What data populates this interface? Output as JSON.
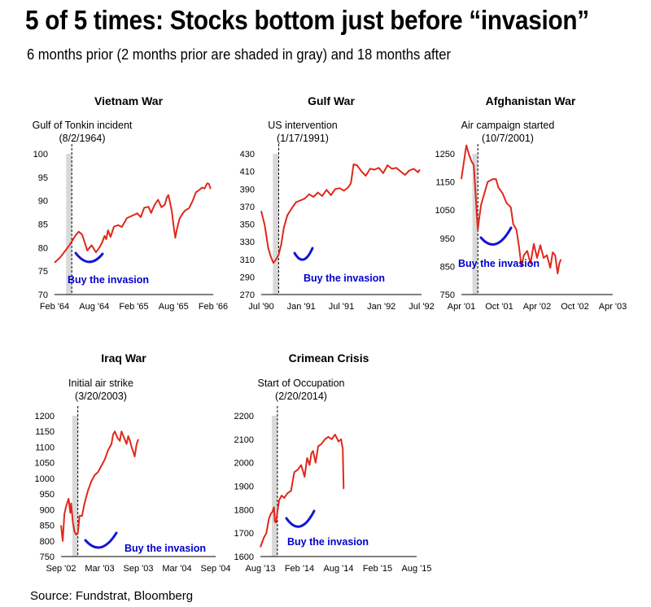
{
  "title": "5 of 5 times: Stocks bottom just before “invasion”",
  "subtitle": "6 months prior (2 months prior are shaded in gray) and 18 months after",
  "source": "Source: Fundstrat, Bloomberg",
  "colors": {
    "line": "#e0281c",
    "shade": "#d9d9d9",
    "arc": "#1414d2",
    "buy_text": "#0000cc"
  },
  "chart_data": [
    {
      "type": "line",
      "title": "Vietnam War",
      "event_label": "Gulf of Tonkin incident",
      "event_date": "(8/2/1964)",
      "annotation": "Buy the invasion",
      "xticks": [
        "Feb '64",
        "Aug '64",
        "Feb '65",
        "Aug '65",
        "Feb '66"
      ],
      "yticks": [
        "100",
        "95",
        "90",
        "85",
        "80",
        "75",
        "70"
      ],
      "ylim": [
        70,
        100
      ],
      "event_x": 1.0,
      "shade": [
        0.67,
        1.0
      ],
      "series": [
        {
          "values": [
            [
              0,
              76.8
            ],
            [
              0.3,
              77.8
            ],
            [
              0.6,
              79.2
            ],
            [
              0.9,
              80.7
            ],
            [
              1.2,
              82.5
            ],
            [
              1.4,
              83.4
            ],
            [
              1.6,
              82.8
            ],
            [
              1.9,
              79.4
            ],
            [
              2.15,
              80.5
            ],
            [
              2.4,
              79.0
            ],
            [
              2.6,
              80.0
            ],
            [
              2.75,
              81.0
            ],
            [
              2.9,
              82.5
            ],
            [
              3.0,
              81.8
            ],
            [
              3.1,
              83.7
            ],
            [
              3.25,
              82.3
            ],
            [
              3.45,
              84.5
            ],
            [
              3.7,
              84.8
            ],
            [
              3.9,
              84.4
            ],
            [
              4.2,
              86.3
            ],
            [
              4.5,
              86.8
            ],
            [
              4.8,
              87.3
            ],
            [
              5.0,
              86.5
            ],
            [
              5.2,
              88.5
            ],
            [
              5.45,
              88.7
            ],
            [
              5.6,
              87.4
            ],
            [
              5.8,
              89.1
            ],
            [
              6.0,
              90.2
            ],
            [
              6.2,
              88.6
            ],
            [
              6.4,
              89.2
            ],
            [
              6.5,
              90.6
            ],
            [
              6.6,
              91.2
            ],
            [
              6.7,
              89.6
            ],
            [
              6.8,
              87.8
            ],
            [
              6.9,
              84.7
            ],
            [
              7.0,
              82.1
            ],
            [
              7.1,
              84.0
            ],
            [
              7.25,
              86.2
            ],
            [
              7.45,
              87.4
            ],
            [
              7.6,
              88.0
            ],
            [
              7.8,
              88.4
            ],
            [
              8.0,
              89.9
            ],
            [
              8.2,
              91.8
            ],
            [
              8.4,
              92.3
            ],
            [
              8.55,
              92.8
            ],
            [
              8.7,
              92.6
            ],
            [
              8.85,
              93.7
            ],
            [
              8.95,
              93.6
            ],
            [
              9.05,
              92.5
            ]
          ]
        }
      ]
    },
    {
      "type": "line",
      "title": "Gulf War",
      "event_label": "US intervention",
      "event_date": "(1/17/1991)",
      "annotation": "Buy the invasion",
      "xticks": [
        "Jul '90",
        "Jan '91",
        "Jul '91",
        "Jan '92",
        "Jul '92"
      ],
      "yticks": [
        "430",
        "410",
        "390",
        "370",
        "350",
        "330",
        "310",
        "290",
        "270"
      ],
      "ylim": [
        270,
        430
      ],
      "event_x": 1.0,
      "shade": [
        0.67,
        1.0
      ],
      "series": [
        {
          "values": [
            [
              0,
              365
            ],
            [
              0.2,
              349
            ],
            [
              0.4,
              323
            ],
            [
              0.55,
              313
            ],
            [
              0.7,
              306
            ],
            [
              0.85,
              310
            ],
            [
              1.0,
              315
            ],
            [
              1.15,
              327
            ],
            [
              1.3,
              346
            ],
            [
              1.5,
              360
            ],
            [
              1.75,
              368
            ],
            [
              2.0,
              375
            ],
            [
              2.25,
              377
            ],
            [
              2.5,
              379
            ],
            [
              2.75,
              384
            ],
            [
              3.0,
              381
            ],
            [
              3.25,
              386
            ],
            [
              3.5,
              382
            ],
            [
              3.75,
              389
            ],
            [
              4.0,
              383
            ],
            [
              4.25,
              390
            ],
            [
              4.5,
              391
            ],
            [
              4.75,
              388
            ],
            [
              5.0,
              392
            ],
            [
              5.15,
              397
            ],
            [
              5.3,
              418
            ],
            [
              5.5,
              417
            ],
            [
              5.75,
              410
            ],
            [
              6.0,
              405
            ],
            [
              6.25,
              413
            ],
            [
              6.5,
              412
            ],
            [
              6.75,
              414
            ],
            [
              7.0,
              408
            ],
            [
              7.25,
              417
            ],
            [
              7.5,
              413
            ],
            [
              7.75,
              414
            ],
            [
              8.0,
              410
            ],
            [
              8.25,
              406
            ],
            [
              8.5,
              411
            ],
            [
              8.75,
              413
            ],
            [
              9.0,
              409
            ],
            [
              9.1,
              412
            ]
          ]
        }
      ]
    },
    {
      "type": "line",
      "title": "Afghanistan War",
      "event_label": "Air campaign started",
      "event_date": "(10/7/2001)",
      "annotation": "Buy the invasion",
      "xticks": [
        "Apr '01",
        "Oct '01",
        "Apr '02",
        "Oct '02",
        "Apr '03"
      ],
      "yticks": [
        "1250",
        "1150",
        "1050",
        "950",
        "850",
        "750"
      ],
      "ylim": [
        750,
        1250
      ],
      "event_x": 1.0,
      "shade": [
        0.67,
        1.0
      ],
      "series": [
        {
          "values": [
            [
              0,
              1160
            ],
            [
              0.15,
              1220
            ],
            [
              0.3,
              1280
            ],
            [
              0.45,
              1250
            ],
            [
              0.6,
              1225
            ],
            [
              0.75,
              1210
            ],
            [
              0.85,
              1120
            ],
            [
              0.93,
              1040
            ],
            [
              1.0,
              980
            ],
            [
              1.08,
              1020
            ],
            [
              1.2,
              1070
            ],
            [
              1.35,
              1100
            ],
            [
              1.6,
              1150
            ],
            [
              1.9,
              1160
            ],
            [
              2.1,
              1160
            ],
            [
              2.25,
              1130
            ],
            [
              2.5,
              1110
            ],
            [
              2.75,
              1075
            ],
            [
              3.0,
              1060
            ],
            [
              3.15,
              1000
            ],
            [
              3.35,
              980
            ],
            [
              3.5,
              920
            ],
            [
              3.65,
              850
            ],
            [
              3.8,
              890
            ],
            [
              4.0,
              905
            ],
            [
              4.2,
              860
            ],
            [
              4.4,
              930
            ],
            [
              4.6,
              880
            ],
            [
              4.8,
              925
            ],
            [
              5.0,
              880
            ],
            [
              5.2,
              890
            ],
            [
              5.4,
              845
            ],
            [
              5.55,
              900
            ],
            [
              5.7,
              890
            ],
            [
              5.85,
              825
            ],
            [
              5.95,
              860
            ],
            [
              6.05,
              875
            ]
          ]
        }
      ]
    },
    {
      "type": "line",
      "title": "Iraq War",
      "event_label": "Initial air strike",
      "event_date": "(3/20/2003)",
      "annotation": "Buy the invasion",
      "xticks": [
        "Sep '02",
        "Mar '03",
        "Sep '03",
        "Mar '04",
        "Sep '04"
      ],
      "yticks": [
        "1200",
        "1150",
        "1100",
        "1050",
        "1000",
        "950",
        "900",
        "850",
        "800",
        "750"
      ],
      "ylim": [
        750,
        1200
      ],
      "event_x": 1.0,
      "shade": [
        0.67,
        1.0
      ],
      "series": [
        {
          "values": [
            [
              0,
              850
            ],
            [
              0.1,
              800
            ],
            [
              0.2,
              885
            ],
            [
              0.3,
              910
            ],
            [
              0.45,
              935
            ],
            [
              0.55,
              890
            ],
            [
              0.6,
              920
            ],
            [
              0.7,
              860
            ],
            [
              0.8,
              830
            ],
            [
              0.9,
              820
            ],
            [
              1.0,
              825
            ],
            [
              1.1,
              880
            ],
            [
              1.25,
              880
            ],
            [
              1.4,
              920
            ],
            [
              1.6,
              960
            ],
            [
              1.8,
              990
            ],
            [
              2.0,
              1010
            ],
            [
              2.2,
              1020
            ],
            [
              2.4,
              1040
            ],
            [
              2.6,
              1060
            ],
            [
              2.8,
              1090
            ],
            [
              3.0,
              1110
            ],
            [
              3.1,
              1140
            ],
            [
              3.2,
              1150
            ],
            [
              3.35,
              1130
            ],
            [
              3.5,
              1120
            ],
            [
              3.6,
              1150
            ],
            [
              3.75,
              1130
            ],
            [
              3.9,
              1110
            ],
            [
              4.0,
              1135
            ],
            [
              4.1,
              1120
            ],
            [
              4.2,
              1100
            ],
            [
              4.3,
              1085
            ],
            [
              4.38,
              1070
            ],
            [
              4.5,
              1110
            ],
            [
              4.6,
              1125
            ]
          ]
        }
      ]
    },
    {
      "type": "line",
      "title": "Crimean Crisis",
      "event_label": "Start of Occupation",
      "event_date": "(2/20/2014)",
      "annotation": "Buy the invasion",
      "xticks": [
        "Aug '13",
        "Feb '14",
        "Aug '14",
        "Feb '15",
        "Aug '15"
      ],
      "yticks": [
        "2200",
        "2100",
        "2000",
        "1900",
        "1800",
        "1700",
        "1600"
      ],
      "ylim": [
        1600,
        2200
      ],
      "event_x": 1.0,
      "shade": [
        0.67,
        1.0
      ],
      "series": [
        {
          "values": [
            [
              0,
              1640
            ],
            [
              0.2,
              1680
            ],
            [
              0.35,
              1700
            ],
            [
              0.5,
              1760
            ],
            [
              0.6,
              1780
            ],
            [
              0.7,
              1790
            ],
            [
              0.8,
              1810
            ],
            [
              0.85,
              1750
            ],
            [
              0.92,
              1745
            ],
            [
              1.0,
              1790
            ],
            [
              1.1,
              1840
            ],
            [
              1.25,
              1860
            ],
            [
              1.4,
              1850
            ],
            [
              1.6,
              1870
            ],
            [
              1.8,
              1880
            ],
            [
              2.0,
              1960
            ],
            [
              2.2,
              1970
            ],
            [
              2.4,
              1990
            ],
            [
              2.6,
              1940
            ],
            [
              2.75,
              2020
            ],
            [
              2.9,
              1990
            ],
            [
              3.0,
              2040
            ],
            [
              3.1,
              2050
            ],
            [
              3.25,
              2000
            ],
            [
              3.4,
              2070
            ],
            [
              3.6,
              2080
            ],
            [
              3.8,
              2100
            ],
            [
              4.0,
              2110
            ],
            [
              4.2,
              2100
            ],
            [
              4.4,
              2120
            ],
            [
              4.6,
              2090
            ],
            [
              4.75,
              2100
            ],
            [
              4.85,
              2060
            ],
            [
              4.9,
              1890
            ],
            [
              4.92,
              1890
            ]
          ]
        }
      ]
    }
  ]
}
